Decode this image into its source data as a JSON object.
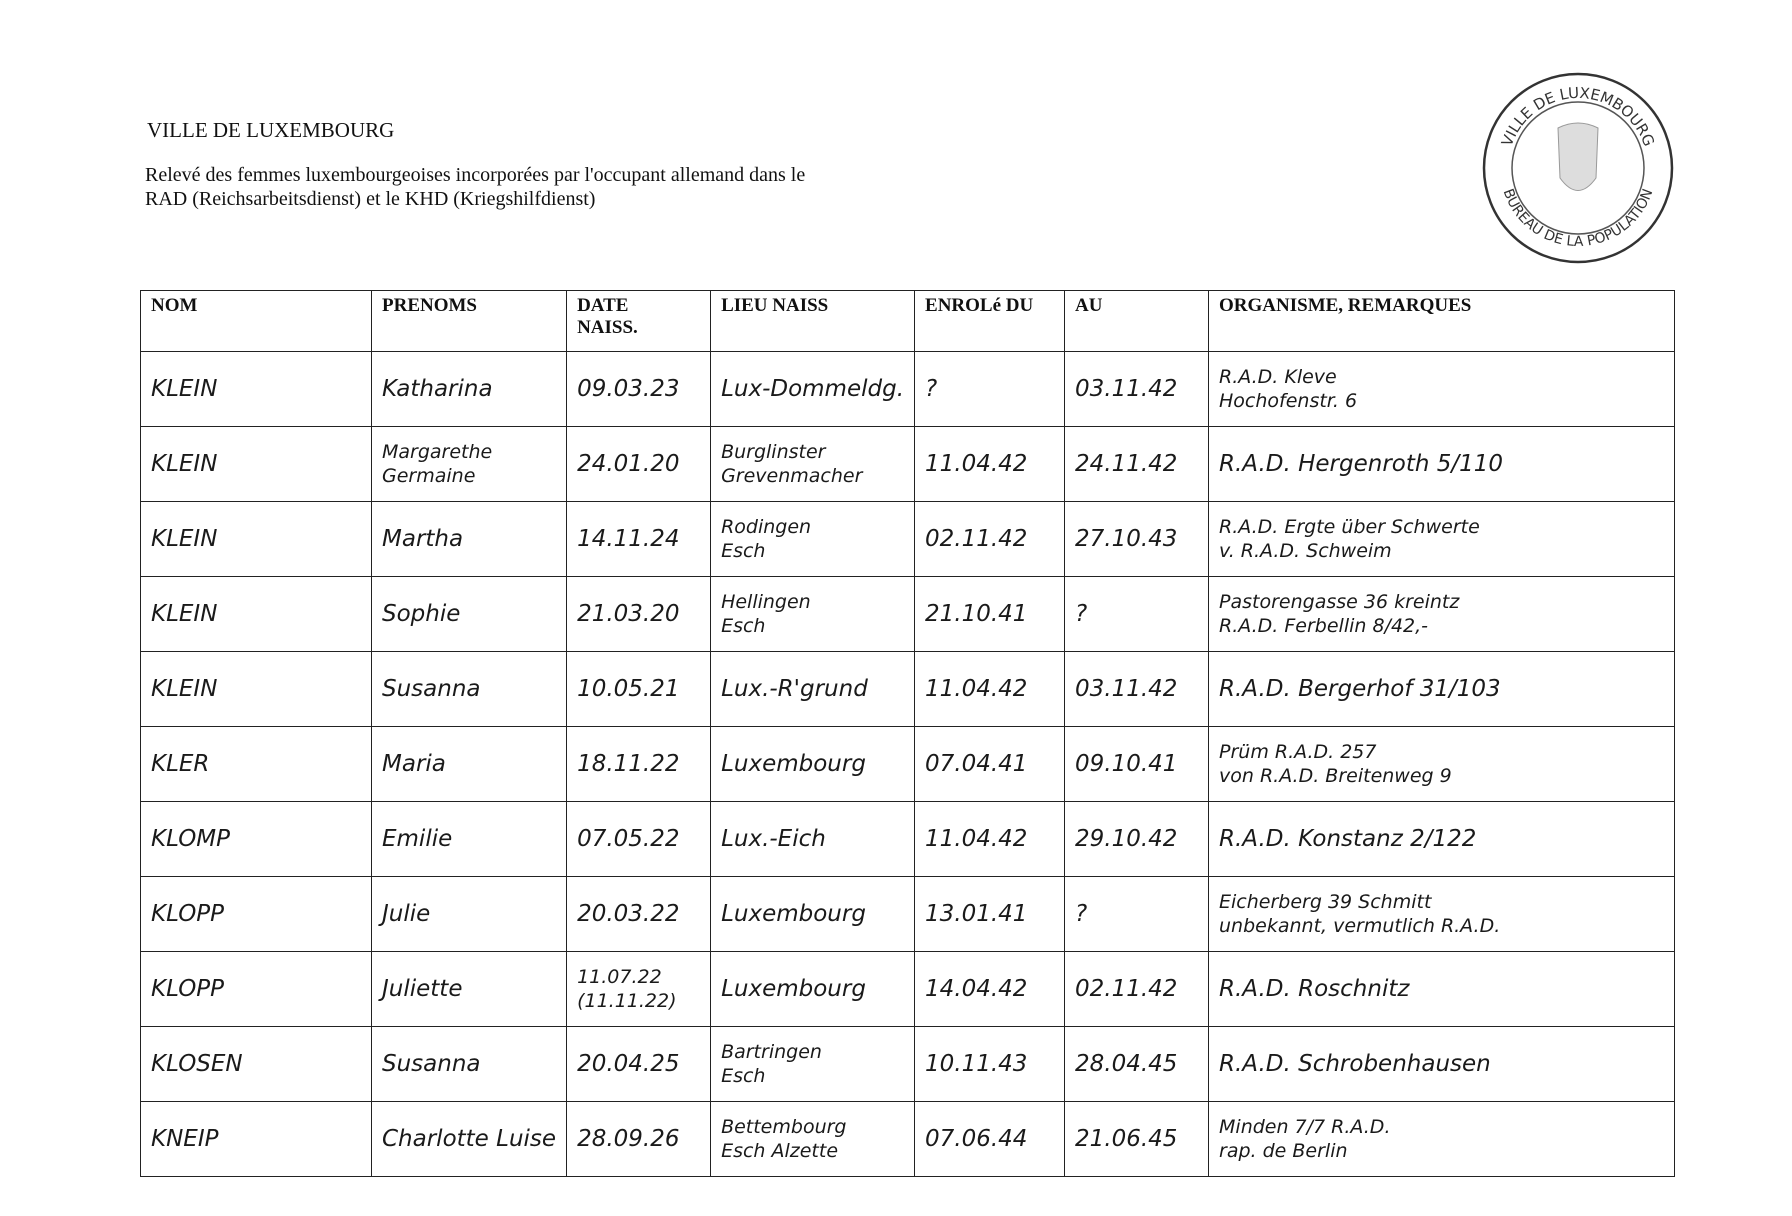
{
  "header": {
    "org": "VILLE DE LUXEMBOURG",
    "description": [
      "Relevé des femmes luxembourgeoises incorporées par l'occupant allemand dans le",
      "RAD (Reichsarbeitsdienst) et le KHD (Kriegshilfdienst)"
    ]
  },
  "stamp": {
    "top": "VILLE DE LUXEMBOURG",
    "bottom": "BUREAU DE LA POPULATION"
  },
  "table": {
    "columns": [
      [
        "NOM"
      ],
      [
        "PRENOMS"
      ],
      [
        "DATE",
        "NAISS."
      ],
      [
        "LIEU NAISS"
      ],
      [
        "ENROLé DU"
      ],
      [
        "AU"
      ],
      [
        "ORGANISME, REMARQUES"
      ]
    ],
    "rows": [
      [
        [
          "KLEIN"
        ],
        [
          "Katharina"
        ],
        [
          "09.03.23"
        ],
        [
          "Lux-Dommeldg."
        ],
        [
          "?"
        ],
        [
          "03.11.42"
        ],
        [
          "R.A.D. Kleve",
          "Hochofenstr. 6"
        ]
      ],
      [
        [
          "KLEIN"
        ],
        [
          "Margarethe",
          "Germaine"
        ],
        [
          "24.01.20"
        ],
        [
          "Burglinster",
          "Grevenmacher"
        ],
        [
          "11.04.42"
        ],
        [
          "24.11.42"
        ],
        [
          "R.A.D. Hergenroth 5/110"
        ]
      ],
      [
        [
          "KLEIN"
        ],
        [
          "Martha"
        ],
        [
          "14.11.24"
        ],
        [
          "Rodingen",
          "Esch"
        ],
        [
          "02.11.42"
        ],
        [
          "27.10.43"
        ],
        [
          "R.A.D. Ergte über Schwerte",
          "v. R.A.D. Schweim"
        ]
      ],
      [
        [
          "KLEIN"
        ],
        [
          "Sophie"
        ],
        [
          "21.03.20"
        ],
        [
          "Hellingen",
          "Esch"
        ],
        [
          "21.10.41"
        ],
        [
          "?"
        ],
        [
          "Pastorengasse 36 kreintz",
          "R.A.D. Ferbellin 8/42,-"
        ]
      ],
      [
        [
          "KLEIN"
        ],
        [
          "Susanna"
        ],
        [
          "10.05.21"
        ],
        [
          "Lux.-R'grund"
        ],
        [
          "11.04.42"
        ],
        [
          "03.11.42"
        ],
        [
          "R.A.D. Bergerhof 31/103"
        ]
      ],
      [
        [
          "KLER"
        ],
        [
          "Maria"
        ],
        [
          "18.11.22"
        ],
        [
          "Luxembourg"
        ],
        [
          "07.04.41"
        ],
        [
          "09.10.41"
        ],
        [
          "Prüm R.A.D. 257",
          "von R.A.D. Breitenweg 9"
        ]
      ],
      [
        [
          "KLOMP"
        ],
        [
          "Emilie"
        ],
        [
          "07.05.22"
        ],
        [
          "Lux.-Eich"
        ],
        [
          "11.04.42"
        ],
        [
          "29.10.42"
        ],
        [
          "R.A.D. Konstanz 2/122"
        ]
      ],
      [
        [
          "KLOPP"
        ],
        [
          "Julie"
        ],
        [
          "20.03.22"
        ],
        [
          "Luxembourg"
        ],
        [
          "13.01.41"
        ],
        [
          "?"
        ],
        [
          "Eicherberg 39 Schmitt",
          "unbekannt, vermutlich R.A.D."
        ]
      ],
      [
        [
          "KLOPP"
        ],
        [
          "Juliette"
        ],
        [
          "11.07.22",
          "(11.11.22)"
        ],
        [
          "Luxembourg"
        ],
        [
          "14.04.42"
        ],
        [
          "02.11.42"
        ],
        [
          "R.A.D. Roschnitz"
        ]
      ],
      [
        [
          "KLOSEN"
        ],
        [
          "Susanna"
        ],
        [
          "20.04.25"
        ],
        [
          "Bartringen",
          "Esch"
        ],
        [
          "10.11.43"
        ],
        [
          "28.04.45"
        ],
        [
          "R.A.D. Schrobenhausen"
        ]
      ],
      [
        [
          "KNEIP"
        ],
        [
          "Charlotte Luise"
        ],
        [
          "28.09.26"
        ],
        [
          "Bettembourg",
          "Esch Alzette"
        ],
        [
          "07.06.44"
        ],
        [
          "21.06.45"
        ],
        [
          "Minden 7/7 R.A.D.",
          "rap. de Berlin"
        ]
      ]
    ]
  }
}
